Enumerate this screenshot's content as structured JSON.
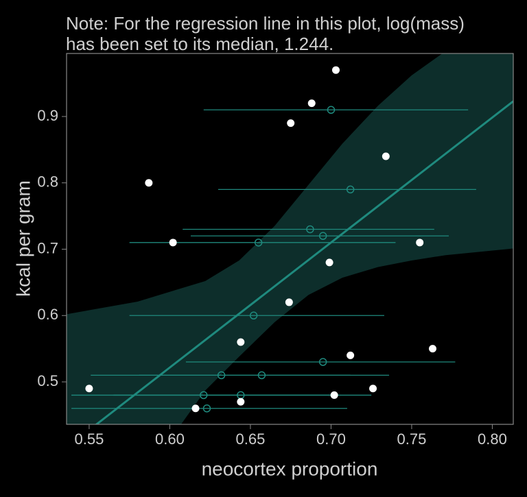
{
  "chart_data": {
    "type": "scatter",
    "annotation": [
      "Note: For the regression line in this plot, log(mass)",
      "has been set to its median, 1.244."
    ],
    "x_label": "neocortex proportion",
    "y_label": "kcal per gram",
    "xlim": [
      0.536,
      0.813
    ],
    "ylim": [
      0.436,
      0.995
    ],
    "xticks": [
      0.55,
      {
        "value": 0.6,
        "label": "0.60"
      },
      0.65,
      {
        "value": 0.7,
        "label": "0.70"
      },
      0.75,
      {
        "value": 0.8,
        "label": "0.80"
      }
    ],
    "yticks": [
      0.5,
      0.6,
      0.7,
      0.8,
      0.9
    ],
    "observed": {
      "color": "#ffffff",
      "x": [
        0.55,
        0.587,
        0.602,
        0.616,
        0.644,
        0.644,
        0.674,
        0.675,
        0.688,
        0.699,
        0.703,
        0.702,
        0.712,
        0.726,
        0.734,
        0.755,
        0.763
      ],
      "y": [
        0.49,
        0.8,
        0.71,
        0.46,
        0.47,
        0.56,
        0.62,
        0.89,
        0.92,
        0.68,
        0.97,
        0.48,
        0.54,
        0.49,
        0.84,
        0.71,
        0.55
      ]
    },
    "imputed": {
      "color": "#1f8a7e",
      "x": [
        0.7,
        0.712,
        0.687,
        0.695,
        0.655,
        0.652,
        0.695,
        0.632,
        0.657,
        0.621,
        0.644,
        0.623
      ],
      "y": [
        0.91,
        0.79,
        0.73,
        0.72,
        0.71,
        0.6,
        0.53,
        0.51,
        0.51,
        0.48,
        0.48,
        0.46
      ],
      "xlow": [
        0.621,
        0.63,
        0.608,
        0.613,
        0.575,
        0.575,
        0.61,
        0.551,
        0.581,
        0.539,
        0.565,
        0.539
      ],
      "xhigh": [
        0.785,
        0.79,
        0.764,
        0.773,
        0.74,
        0.733,
        0.777,
        0.712,
        0.736,
        0.703,
        0.725,
        0.71
      ]
    },
    "line": {
      "color": "#1f8a7e",
      "x": [
        0.536,
        0.813
      ],
      "y": [
        0.401,
        0.923
      ]
    },
    "ribbon": {
      "color": "#0d2e2b",
      "x_upper": [
        0.536,
        0.58,
        0.622,
        0.643,
        0.665,
        0.686,
        0.707,
        0.729,
        0.75,
        0.769
      ],
      "upper": [
        0.602,
        0.621,
        0.652,
        0.683,
        0.735,
        0.797,
        0.859,
        0.916,
        0.962,
        0.995
      ],
      "x_lower": [
        0.607,
        0.622,
        0.643,
        0.665,
        0.686,
        0.707,
        0.729,
        0.75,
        0.771,
        0.813
      ],
      "lower": [
        0.436,
        0.487,
        0.538,
        0.59,
        0.631,
        0.657,
        0.673,
        0.683,
        0.691,
        0.701
      ]
    }
  }
}
